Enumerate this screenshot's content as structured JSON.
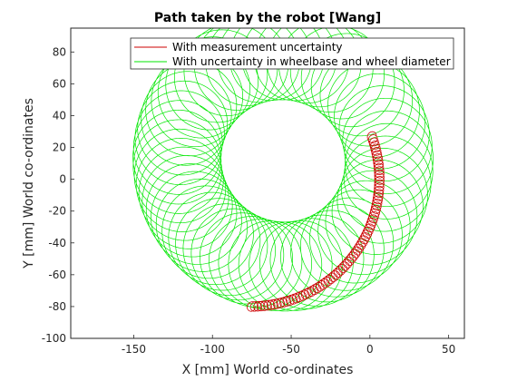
{
  "chart_data": {
    "type": "line",
    "title": "Path taken by the robot [Wang]",
    "xlabel": "X [mm] World co-ordinates",
    "ylabel": "Y [mm] World co-ordinates",
    "xlim": [
      -190,
      60
    ],
    "ylim": [
      -100,
      95
    ],
    "xticks": [
      -150,
      -100,
      -50,
      0,
      50
    ],
    "yticks": [
      -100,
      -80,
      -60,
      -40,
      -20,
      0,
      20,
      40,
      60,
      80
    ],
    "grid": false,
    "legend_position": "top-right",
    "series": [
      {
        "name": "With measurement uncertainty",
        "color": "#cc0000",
        "style": "arc-with-small-loops",
        "center": [
          -76,
          0
        ],
        "radius_x": 82,
        "radius_y": 80,
        "start_deg": 20,
        "end_deg": 270,
        "loop_radius": 3,
        "loop_count": 75
      },
      {
        "name": "With uncertainty in wheelbase and wheel diameter",
        "color": "#00e600",
        "style": "spirograph-loops",
        "center": [
          -65,
          5
        ],
        "ring_radius": 67,
        "loop_radius": 28,
        "loop_count": 60
      }
    ]
  }
}
